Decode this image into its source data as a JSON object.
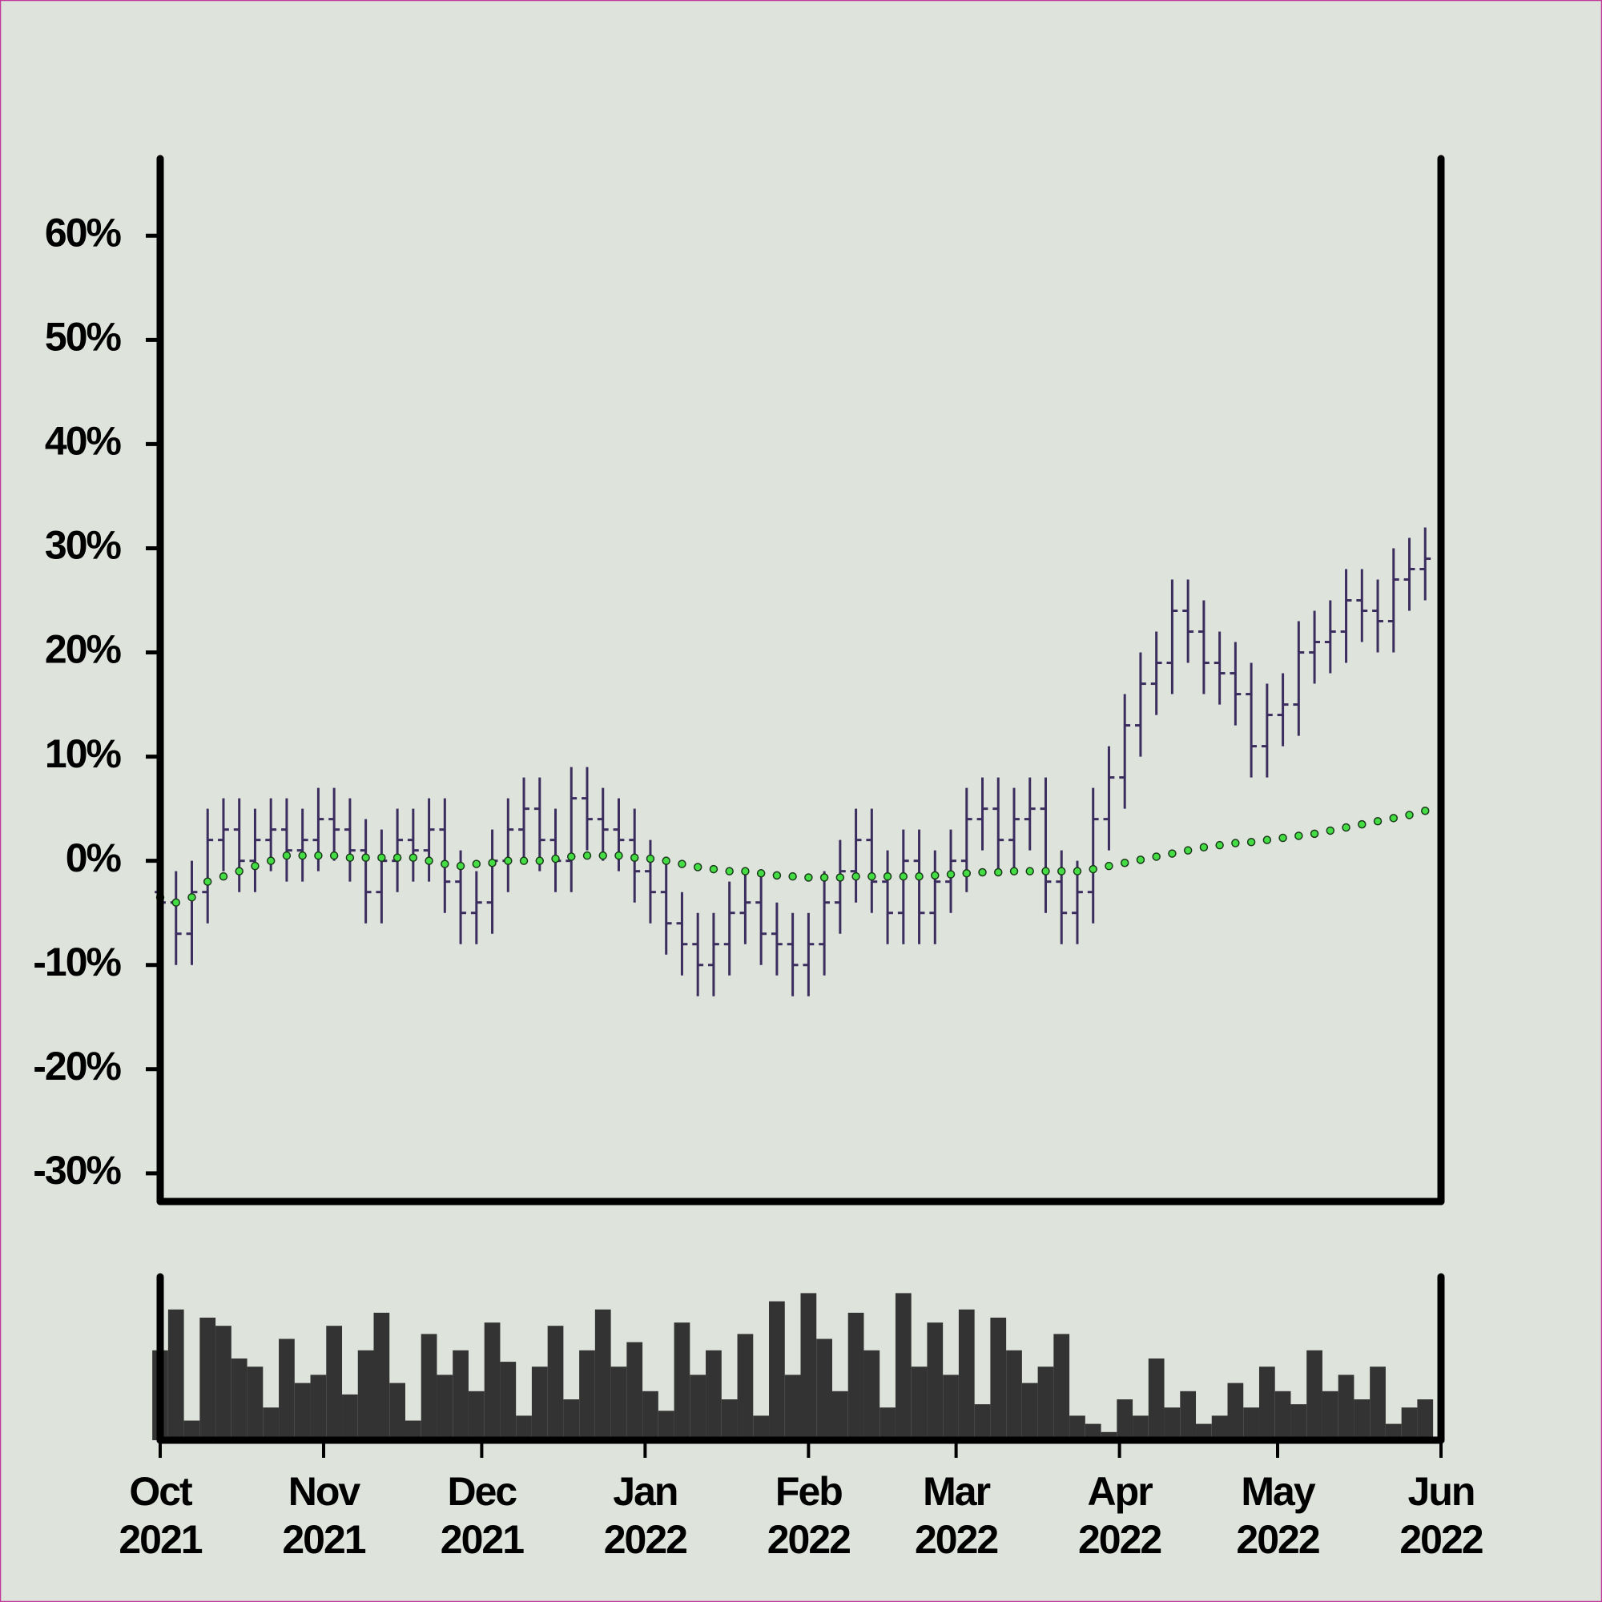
{
  "chart_data": {
    "type": "ohlc",
    "color": "#3b2d5e",
    "x": [
      0,
      3,
      6,
      9,
      12,
      15,
      18,
      21,
      24,
      27,
      30,
      33,
      36,
      39,
      42,
      45,
      48,
      51,
      54,
      57,
      60,
      63,
      66,
      69,
      72,
      75,
      78,
      81,
      84,
      87,
      90,
      93,
      96,
      99,
      102,
      105,
      108,
      111,
      114,
      117,
      120,
      123,
      126,
      129,
      132,
      135,
      138,
      141,
      144,
      147,
      150,
      153,
      156,
      159,
      162,
      165,
      168,
      171,
      174,
      177,
      180,
      183,
      186,
      189,
      192,
      195,
      198,
      201,
      204,
      207,
      210,
      213,
      216,
      219,
      222,
      225,
      228,
      231,
      234,
      237,
      240
    ],
    "open": [
      -3,
      -4,
      -7,
      -3,
      2,
      3,
      0,
      2,
      3,
      1,
      2,
      4,
      3,
      1,
      -3,
      0,
      2,
      1,
      3,
      -2,
      -5,
      -4,
      0,
      3,
      5,
      2,
      0,
      6,
      4,
      3,
      2,
      -1,
      -3,
      -6,
      -8,
      -10,
      -8,
      -5,
      -4,
      -7,
      -8,
      -10,
      -8,
      -4,
      -1,
      2,
      -2,
      -5,
      0,
      -5,
      -2,
      0,
      4,
      5,
      2,
      4,
      5,
      -2,
      -5,
      -3,
      4,
      8,
      13,
      17,
      19,
      24,
      22,
      19,
      18,
      16,
      11,
      14,
      15,
      20,
      21,
      22,
      25,
      24,
      23,
      27,
      28
    ],
    "high": [
      0,
      -1,
      0,
      5,
      6,
      6,
      5,
      6,
      6,
      5,
      7,
      7,
      6,
      4,
      3,
      5,
      5,
      6,
      6,
      1,
      -1,
      3,
      6,
      8,
      8,
      5,
      9,
      9,
      7,
      6,
      5,
      2,
      0,
      -3,
      -5,
      -5,
      -2,
      -1,
      -1,
      -4,
      -5,
      -5,
      -1,
      2,
      5,
      5,
      1,
      3,
      3,
      1,
      3,
      7,
      8,
      8,
      7,
      8,
      8,
      1,
      0,
      7,
      11,
      16,
      20,
      22,
      27,
      27,
      25,
      22,
      21,
      19,
      17,
      18,
      23,
      24,
      25,
      28,
      28,
      27,
      30,
      31,
      32
    ],
    "low": [
      -7,
      -10,
      -10,
      -6,
      -1,
      -3,
      -3,
      -1,
      -2,
      -2,
      -1,
      0,
      -2,
      -6,
      -6,
      -3,
      -2,
      -2,
      -5,
      -8,
      -8,
      -7,
      -3,
      0,
      -1,
      -3,
      -3,
      1,
      0,
      -1,
      -4,
      -6,
      -9,
      -11,
      -13,
      -13,
      -11,
      -8,
      -10,
      -11,
      -13,
      -13,
      -11,
      -7,
      -4,
      -5,
      -8,
      -8,
      -8,
      -8,
      -5,
      -3,
      1,
      -1,
      -1,
      1,
      -5,
      -8,
      -8,
      -6,
      1,
      5,
      10,
      14,
      16,
      19,
      16,
      15,
      13,
      8,
      8,
      11,
      12,
      17,
      18,
      19,
      21,
      20,
      20,
      24,
      25
    ],
    "close": [
      -4,
      -7,
      -3,
      2,
      3,
      0,
      2,
      3,
      1,
      2,
      4,
      3,
      1,
      -3,
      0,
      2,
      1,
      3,
      -2,
      -5,
      -4,
      0,
      3,
      5,
      2,
      0,
      6,
      4,
      3,
      2,
      -1,
      -3,
      -6,
      -8,
      -10,
      -8,
      -5,
      -4,
      -7,
      -8,
      -10,
      -8,
      -4,
      -1,
      2,
      -2,
      -5,
      0,
      -5,
      -2,
      0,
      4,
      5,
      2,
      4,
      5,
      -2,
      -5,
      -3,
      4,
      8,
      13,
      17,
      19,
      24,
      22,
      19,
      18,
      16,
      11,
      14,
      15,
      20,
      21,
      22,
      25,
      24,
      23,
      27,
      28,
      29
    ],
    "moving_average": {
      "color": "#44dd44",
      "values": [
        -3.5,
        -4,
        -3.5,
        -2,
        -1.5,
        -1,
        -0.5,
        0,
        0.5,
        0.5,
        0.5,
        0.5,
        0.3,
        0.3,
        0.3,
        0.3,
        0.3,
        0,
        -0.3,
        -0.5,
        -0.3,
        -0.2,
        0,
        0,
        0,
        0.2,
        0.4,
        0.5,
        0.5,
        0.5,
        0.3,
        0.2,
        0,
        -0.3,
        -0.6,
        -0.8,
        -1,
        -1,
        -1.2,
        -1.4,
        -1.5,
        -1.6,
        -1.6,
        -1.6,
        -1.5,
        -1.5,
        -1.5,
        -1.5,
        -1.5,
        -1.4,
        -1.3,
        -1.2,
        -1.1,
        -1.1,
        -1,
        -1,
        -1,
        -1,
        -1,
        -0.8,
        -0.5,
        -0.2,
        0.1,
        0.4,
        0.7,
        1,
        1.3,
        1.5,
        1.7,
        1.8,
        2,
        2.2,
        2.4,
        2.6,
        2.9,
        3.2,
        3.5,
        3.8,
        4.1,
        4.4,
        4.8
      ]
    },
    "volume": {
      "color": "#333333",
      "ylim": [
        0,
        100
      ],
      "values": [
        55,
        80,
        12,
        75,
        70,
        50,
        45,
        20,
        62,
        35,
        40,
        70,
        28,
        55,
        78,
        35,
        12,
        65,
        40,
        55,
        30,
        72,
        48,
        15,
        45,
        70,
        25,
        55,
        80,
        45,
        60,
        30,
        18,
        72,
        40,
        55,
        25,
        65,
        15,
        85,
        40,
        90,
        62,
        30,
        78,
        55,
        20,
        90,
        45,
        72,
        40,
        80,
        22,
        75,
        55,
        35,
        45,
        65,
        15,
        10,
        5,
        25,
        15,
        50,
        20,
        30,
        10,
        15,
        35,
        20,
        45,
        30,
        22,
        55,
        30,
        40,
        25,
        45,
        10,
        20,
        25
      ]
    },
    "xlim": [
      0,
      243
    ],
    "xticks": [
      {
        "value": 0,
        "label": "Oct 2021"
      },
      {
        "value": 31,
        "label": "Nov 2021"
      },
      {
        "value": 61,
        "label": "Dec 2021"
      },
      {
        "value": 92,
        "label": "Jan 2022"
      },
      {
        "value": 123,
        "label": "Feb 2022"
      },
      {
        "value": 151,
        "label": "Mar 2022"
      },
      {
        "value": 182,
        "label": "Apr 2022"
      },
      {
        "value": 212,
        "label": "May 2022"
      },
      {
        "value": 243,
        "label": "Jun 2022"
      }
    ],
    "ylim": [
      -32.7,
      67.4
    ],
    "yticks": [
      {
        "value": -30,
        "label": "-30%"
      },
      {
        "value": -20,
        "label": "-20%"
      },
      {
        "value": -10,
        "label": "-10%"
      },
      {
        "value": 0,
        "label": "0%"
      },
      {
        "value": 10,
        "label": "10%"
      },
      {
        "value": 20,
        "label": "20%"
      },
      {
        "value": 30,
        "label": "30%"
      },
      {
        "value": 40,
        "label": "40%"
      },
      {
        "value": 50,
        "label": "50%"
      },
      {
        "value": 60,
        "label": "60%"
      }
    ]
  }
}
